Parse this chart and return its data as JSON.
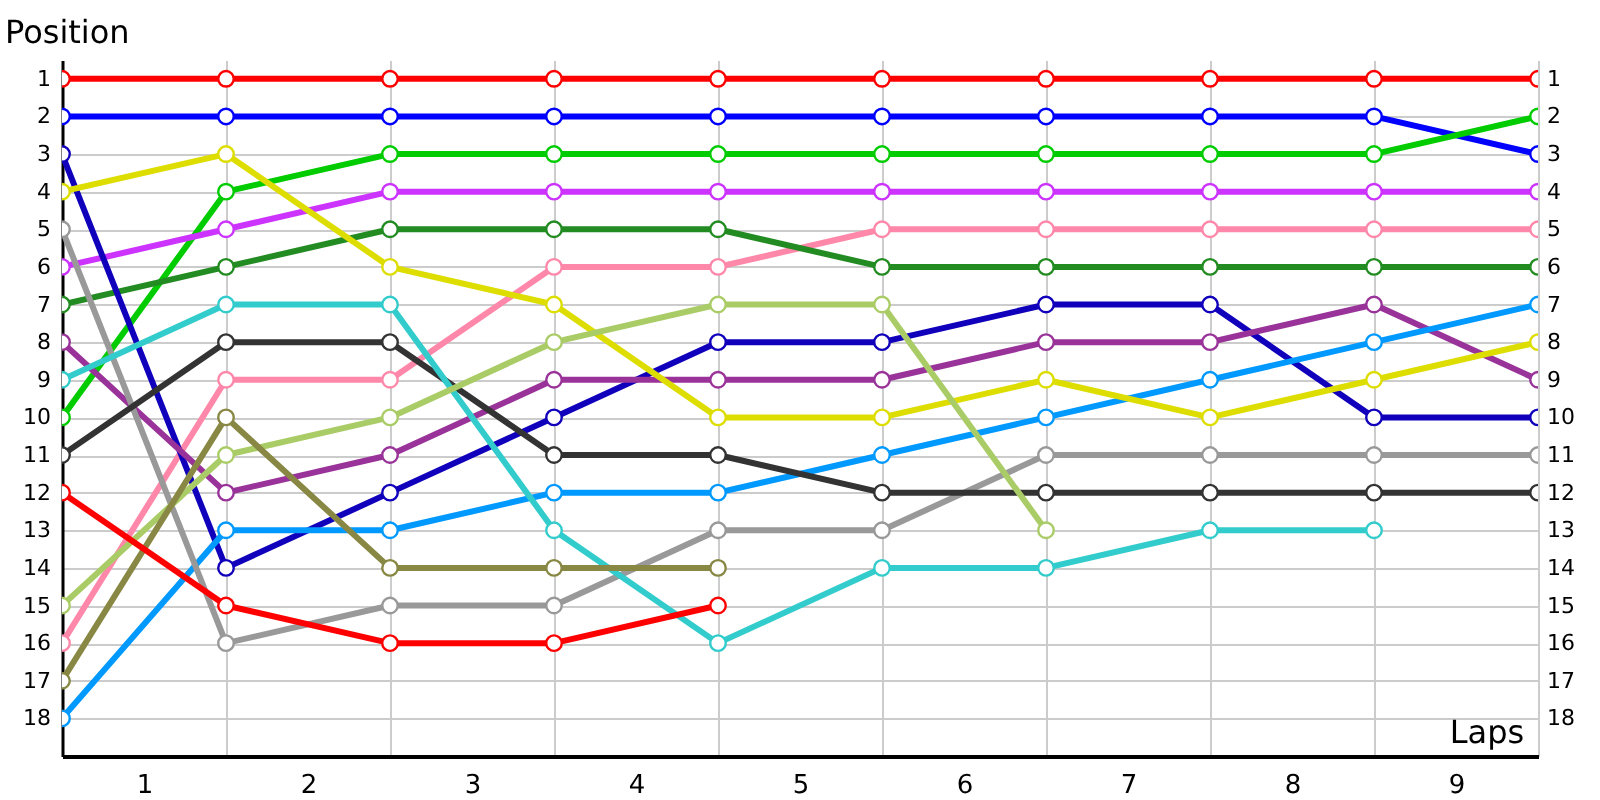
{
  "chart_data": {
    "type": "line",
    "xlabel": "Laps",
    "ylabel": "Position",
    "x": [
      0,
      1,
      2,
      3,
      4,
      5,
      6,
      7,
      8,
      9
    ],
    "xlim": [
      0,
      9
    ],
    "xticks": [
      {
        "value": 0,
        "label": null
      },
      {
        "value": 0.5,
        "label": "1"
      },
      {
        "value": 1,
        "label": null
      },
      {
        "value": 1.5,
        "label": "2"
      },
      {
        "value": 2,
        "label": null
      },
      {
        "value": 2.5,
        "label": "3"
      },
      {
        "value": 3,
        "label": null
      },
      {
        "value": 3.5,
        "label": "4"
      },
      {
        "value": 4,
        "label": null
      },
      {
        "value": 4.5,
        "label": "5"
      },
      {
        "value": 5,
        "label": null
      },
      {
        "value": 5.5,
        "label": "6"
      },
      {
        "value": 6,
        "label": null
      },
      {
        "value": 6.5,
        "label": "7"
      },
      {
        "value": 7,
        "label": null
      },
      {
        "value": 7.5,
        "label": "8"
      },
      {
        "value": 8,
        "label": null
      },
      {
        "value": 8.5,
        "label": "9"
      },
      {
        "value": 9,
        "label": null
      }
    ],
    "ylim": [
      19,
      0.5
    ],
    "yticks": [
      1,
      2,
      3,
      4,
      5,
      6,
      7,
      8,
      9,
      10,
      11,
      12,
      13,
      14,
      15,
      16,
      17,
      18
    ],
    "y2lim": [
      19,
      0.5
    ],
    "y2ticks": [
      1,
      2,
      3,
      4,
      5,
      6,
      7,
      8,
      9,
      10,
      11,
      12,
      13,
      14,
      15,
      16,
      17,
      18
    ],
    "grid": true,
    "marker": "circle",
    "line_style": "solid",
    "series": [
      {
        "color": "#ff0000",
        "values": [
          1,
          1,
          1,
          1,
          1,
          1,
          1,
          1,
          1,
          1
        ]
      },
      {
        "color": "#0000ff",
        "values": [
          2,
          2,
          2,
          2,
          2,
          2,
          2,
          2,
          2,
          3
        ]
      },
      {
        "color": "#00cc00",
        "values": [
          10,
          4,
          3,
          3,
          3,
          3,
          3,
          3,
          3,
          2
        ]
      },
      {
        "color": "#cc33ff",
        "values": [
          6,
          5,
          4,
          4,
          4,
          4,
          4,
          4,
          4,
          4
        ]
      },
      {
        "color": "#ff88aa",
        "values": [
          16,
          9,
          9,
          6,
          6,
          5,
          5,
          5,
          5,
          5
        ]
      },
      {
        "color": "#228b22",
        "values": [
          7,
          6,
          5,
          5,
          5,
          6,
          6,
          6,
          6,
          6
        ]
      },
      {
        "color": "#1100bb",
        "values": [
          3,
          14,
          12,
          10,
          8,
          8,
          7,
          7,
          10,
          10
        ]
      },
      {
        "color": "#993399",
        "values": [
          8,
          12,
          11,
          9,
          9,
          9,
          8,
          8,
          7,
          9
        ]
      },
      {
        "color": "#0099ff",
        "values": [
          18,
          13,
          13,
          12,
          12,
          11,
          10,
          9,
          8,
          7
        ]
      },
      {
        "color": "#dddd00",
        "values": [
          4,
          3,
          6,
          7,
          10,
          10,
          9,
          10,
          9,
          8
        ]
      },
      {
        "color": "#999999",
        "values": [
          5,
          16,
          15,
          15,
          13,
          13,
          11,
          11,
          11,
          11
        ]
      },
      {
        "color": "#333333",
        "values": [
          11,
          8,
          8,
          11,
          11,
          12,
          12,
          12,
          12,
          12
        ]
      },
      {
        "color": "#33cccc",
        "values": [
          9,
          7,
          7,
          13,
          16,
          14,
          14,
          13,
          13,
          null
        ]
      },
      {
        "color": "#aacc66",
        "values": [
          15,
          11,
          10,
          8,
          7,
          7,
          13,
          null,
          null,
          null
        ]
      },
      {
        "color": "#888844",
        "values": [
          17,
          10,
          14,
          14,
          14,
          null,
          null,
          null,
          null,
          null
        ]
      },
      {
        "color": "#ff0000",
        "values": [
          12,
          15,
          16,
          16,
          15,
          null,
          null,
          null,
          null,
          null
        ]
      }
    ]
  }
}
